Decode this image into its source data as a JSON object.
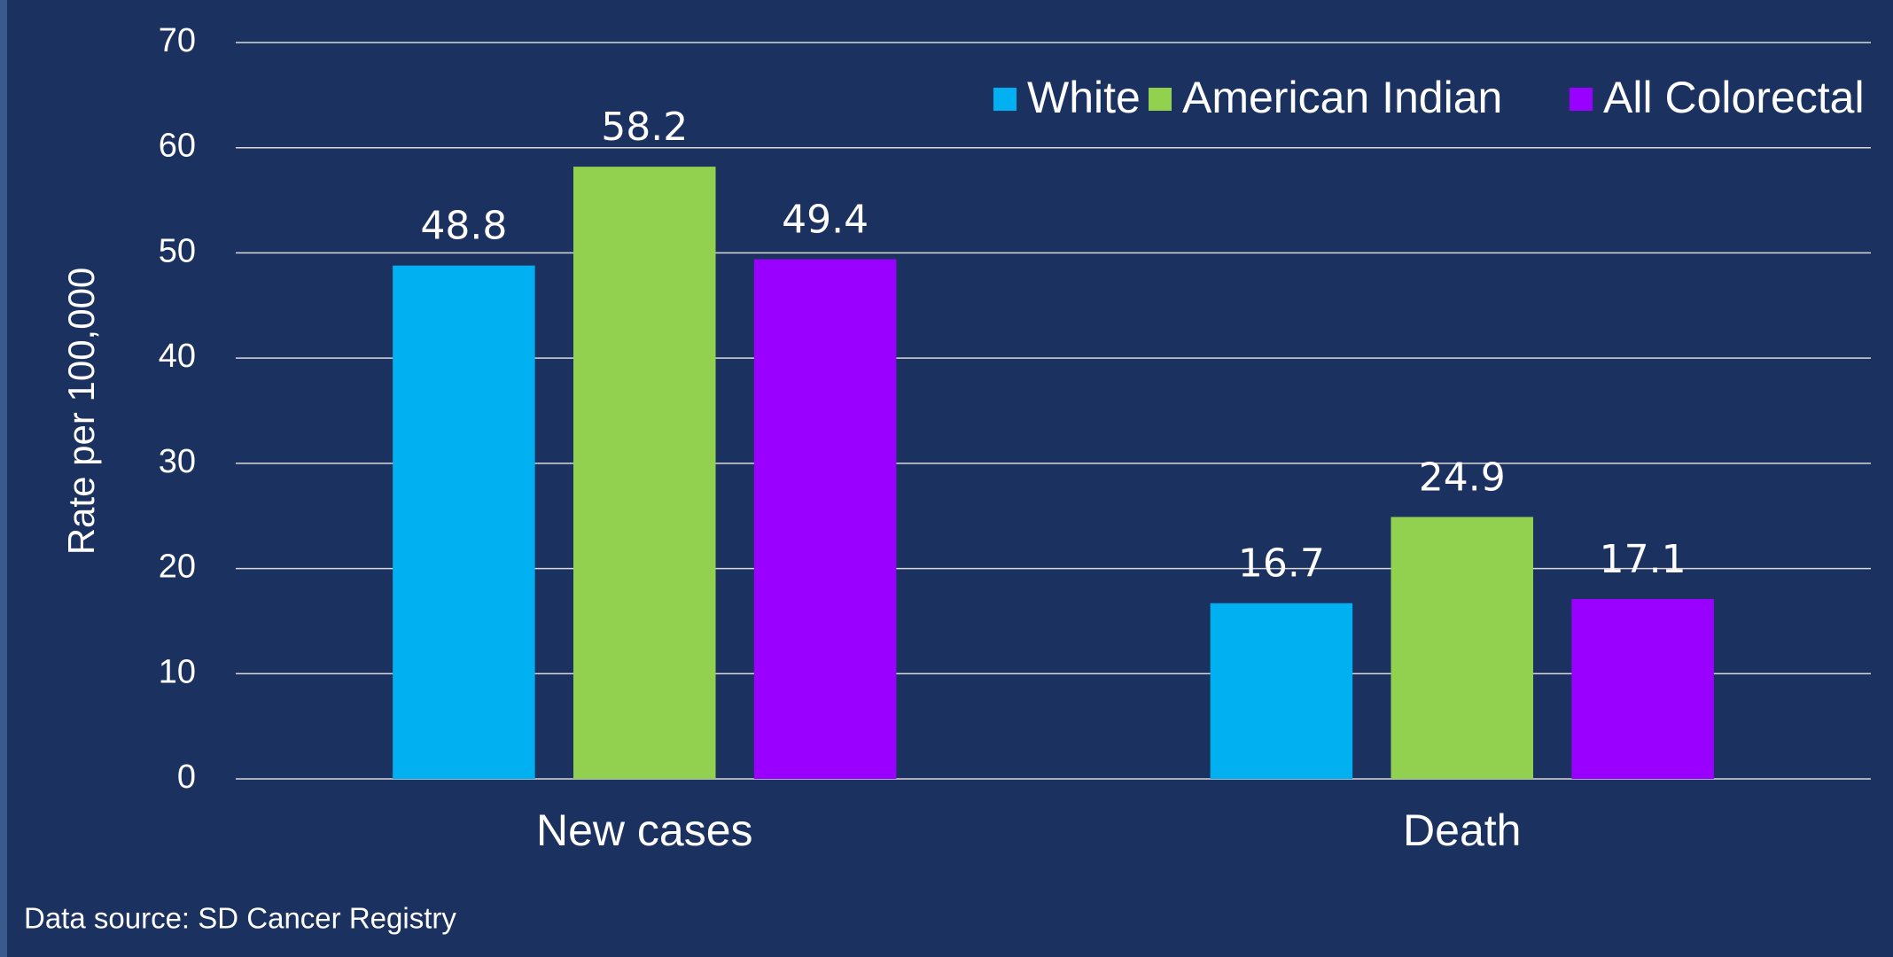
{
  "chart_data": {
    "type": "bar",
    "y_label": "Rate per 100,000",
    "categories": [
      "New cases",
      "Death"
    ],
    "series": [
      {
        "name": "White",
        "color": "#00b0f0",
        "values": [
          48.8,
          16.7
        ]
      },
      {
        "name": "American Indian",
        "color": "#92d050",
        "values": [
          58.2,
          24.9
        ]
      },
      {
        "name": "All Colorectal",
        "color": "#9900ff",
        "values": [
          49.4,
          17.1
        ]
      }
    ],
    "ylim": [
      0,
      70
    ],
    "yticks": [
      0,
      10,
      20,
      30,
      40,
      50,
      60,
      70
    ],
    "grid": true,
    "legend": "top-right",
    "source": "Data source: SD Cancer Registry"
  }
}
